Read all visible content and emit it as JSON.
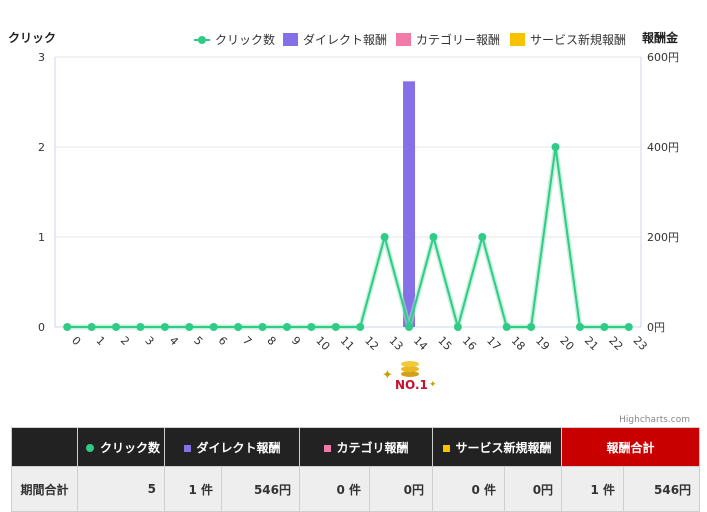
{
  "colors": {
    "clicks": "#2ecc86",
    "direct": "#8670e8",
    "category": "#f27aa8",
    "service": "#f7c200",
    "header_bg": "#222222",
    "total_bg": "#c80000"
  },
  "legend": {
    "clicks": "クリック数",
    "direct": "ダイレクト報酬",
    "category": "カテゴリー報酬",
    "service": "サービス新規報酬"
  },
  "credits": "Highcharts.com",
  "badge_text": "NO.1",
  "chart_data": {
    "type": "line",
    "categories": [
      "0",
      "1",
      "2",
      "3",
      "4",
      "5",
      "6",
      "7",
      "8",
      "9",
      "10",
      "11",
      "12",
      "13",
      "14",
      "15",
      "16",
      "17",
      "18",
      "19",
      "20",
      "21",
      "22",
      "23"
    ],
    "ylabel": "クリック",
    "ylabel_right": "報酬金",
    "ylim": [
      0,
      3
    ],
    "ylim_right": [
      0,
      600
    ],
    "y_ticks": [
      "0",
      "1",
      "2",
      "3"
    ],
    "y_ticks_right": [
      "0円",
      "200円",
      "400円",
      "600円"
    ],
    "series": [
      {
        "name": "クリック数",
        "type": "line",
        "values": [
          0,
          0,
          0,
          0,
          0,
          0,
          0,
          0,
          0,
          0,
          0,
          0,
          0,
          1,
          0,
          1,
          0,
          1,
          0,
          0,
          2,
          0,
          0,
          0
        ]
      },
      {
        "name": "ダイレクト報酬",
        "type": "bar",
        "values": [
          0,
          0,
          0,
          0,
          0,
          0,
          0,
          0,
          0,
          0,
          0,
          0,
          0,
          0,
          546,
          0,
          0,
          0,
          0,
          0,
          0,
          0,
          0,
          0
        ]
      },
      {
        "name": "カテゴリー報酬",
        "type": "bar",
        "values": [
          0,
          0,
          0,
          0,
          0,
          0,
          0,
          0,
          0,
          0,
          0,
          0,
          0,
          0,
          0,
          0,
          0,
          0,
          0,
          0,
          0,
          0,
          0,
          0
        ]
      },
      {
        "name": "サービス新規報酬",
        "type": "bar",
        "values": [
          0,
          0,
          0,
          0,
          0,
          0,
          0,
          0,
          0,
          0,
          0,
          0,
          0,
          0,
          0,
          0,
          0,
          0,
          0,
          0,
          0,
          0,
          0,
          0
        ]
      }
    ],
    "grid": true,
    "legend_position": "top-right"
  },
  "summary": {
    "headers": {
      "clicks": "クリック数",
      "direct": "ダイレクト報酬",
      "category": "カテゴリ報酬",
      "service": "サービス新規報酬",
      "total": "報酬合計"
    },
    "row_label": "期間合計",
    "clicks": "5",
    "direct_count": "1 件",
    "direct_amount": "546円",
    "category_count": "0 件",
    "category_amount": "0円",
    "service_count": "0 件",
    "service_amount": "0円",
    "total_count": "1 件",
    "total_amount": "546円"
  }
}
